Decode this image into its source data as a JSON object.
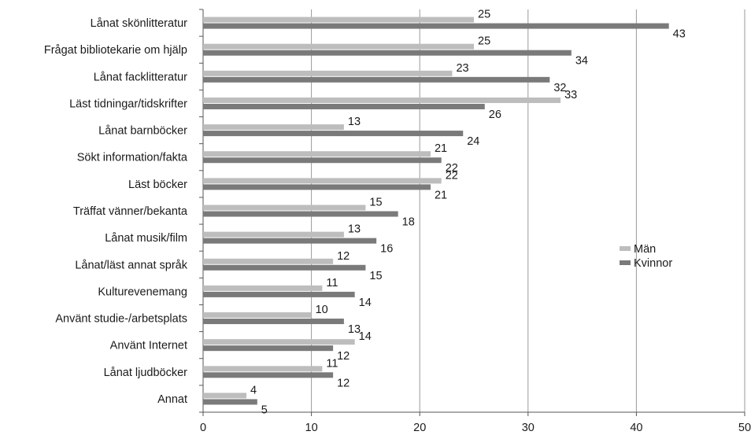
{
  "chart_data": {
    "type": "bar",
    "orientation": "horizontal",
    "categories": [
      "Lånat skönlitteratur",
      "Frågat bibliotekarie om hjälp",
      "Lånat facklitteratur",
      "Läst tidningar/tidskrifter",
      "Lånat barnböcker",
      "Sökt information/fakta",
      "Läst böcker",
      "Träffat vänner/bekanta",
      "Lånat musik/film",
      "Lånat/läst annat språk",
      "Kulturevenemang",
      "Använt studie-/arbetsplats",
      "Använt Internet",
      "Lånat ljudböcker",
      "Annat"
    ],
    "series": [
      {
        "name": "Män",
        "color": "#bdbdbd",
        "values": [
          25,
          25,
          23,
          33,
          13,
          21,
          22,
          15,
          13,
          12,
          11,
          10,
          14,
          11,
          4
        ]
      },
      {
        "name": "Kvinnor",
        "color": "#7a7a7a",
        "values": [
          43,
          34,
          32,
          26,
          24,
          22,
          21,
          18,
          16,
          15,
          14,
          13,
          12,
          12,
          5
        ]
      }
    ],
    "xlim": [
      0,
      50
    ],
    "xticks": [
      0,
      10,
      20,
      30,
      40,
      50
    ],
    "xlabel": "",
    "ylabel": "",
    "title": "",
    "grid": "vertical",
    "legend_position": "right"
  }
}
